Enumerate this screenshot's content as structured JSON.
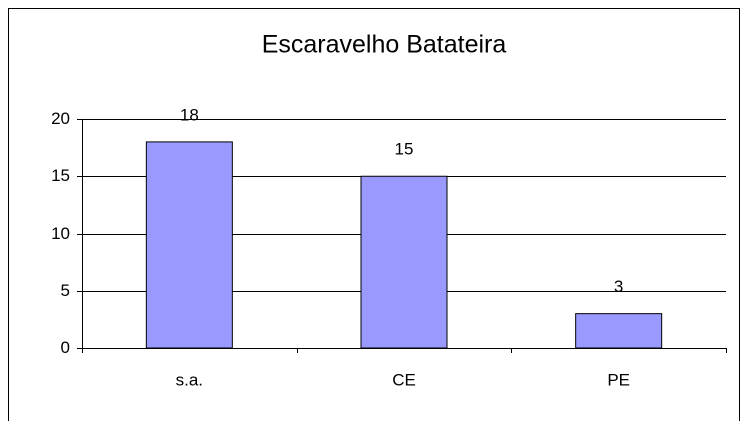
{
  "chart_data": {
    "type": "bar",
    "title": "Escaravelho Batateira",
    "categories": [
      "s.a.",
      "CE",
      "PE"
    ],
    "values": [
      18,
      15,
      3
    ],
    "color": "#9999ff",
    "ylim": [
      0,
      20
    ],
    "yticks": [
      0,
      5,
      10,
      15,
      20
    ],
    "grid": true
  }
}
